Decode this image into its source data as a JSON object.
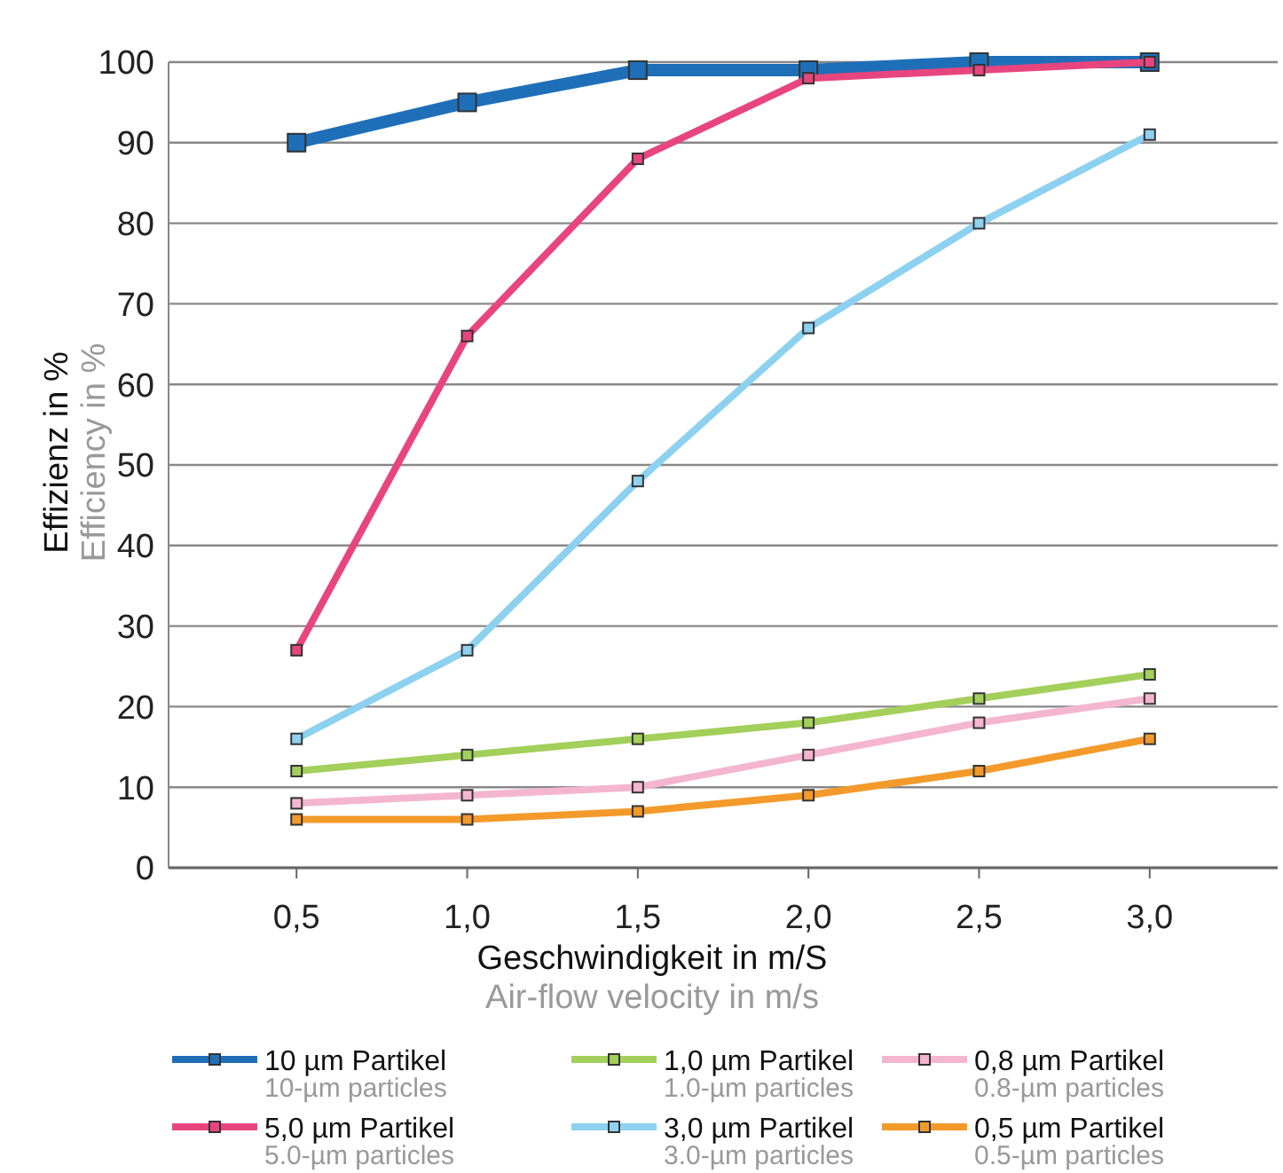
{
  "chart_data": {
    "type": "line",
    "xlabel": "Geschwindigkeit in m/S\nAir-flow velocity in m/s",
    "ylabel": "Effizienz in %\nEfficiency in %",
    "categories": [
      "0,5",
      "1,0",
      "1,5",
      "2,0",
      "2,5",
      "3,0"
    ],
    "series": [
      {
        "name": "10 µm Partikel\n10-µm particles",
        "color": "#1f6fb8",
        "values": [
          90,
          95,
          99,
          99,
          100,
          100
        ]
      },
      {
        "name": "1,0 µm Partikel\n1.0-µm particles",
        "color": "#a3cf5a",
        "values": [
          12,
          14,
          16,
          18,
          21,
          24
        ]
      },
      {
        "name": "0,8 µm Partikel\n0.8-µm particles",
        "color": "#f4b6cf",
        "values": [
          8,
          9,
          10,
          14,
          18,
          21
        ]
      },
      {
        "name": "5,0 µm Partikel\n5.0-µm particles",
        "color": "#e8457e",
        "values": [
          27,
          66,
          88,
          98,
          99,
          100
        ]
      },
      {
        "name": "3,0 µm Partikel\n3.0-µm particles",
        "color": "#8dd1f0",
        "values": [
          16,
          27,
          48,
          67,
          80,
          91
        ]
      },
      {
        "name": "0,5 µm Partikel\n0.5-µm particles",
        "color": "#f39a2b",
        "values": [
          6,
          6,
          7,
          9,
          12,
          16
        ]
      }
    ],
    "ylim": [
      0,
      100
    ],
    "yticks": [
      0,
      10,
      20,
      30,
      40,
      50,
      60,
      70,
      80,
      90,
      100
    ],
    "grid": "y",
    "legend": "bottom",
    "marker": "square",
    "line_style": "solid"
  }
}
